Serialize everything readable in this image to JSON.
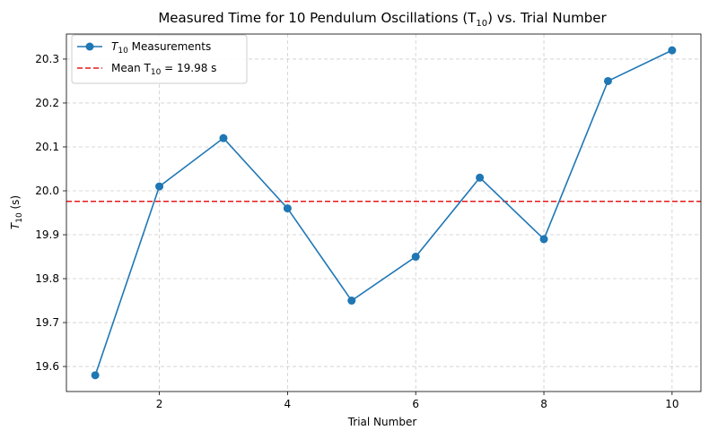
{
  "chart_data": {
    "type": "line",
    "title": "Measured Time for 10 Pendulum Oscillations (T",
    "title_sub": "10",
    "title_tail": ") vs. Trial Number",
    "xlabel": "Trial Number",
    "ylabel": "T",
    "ylabel_sub": "10",
    "ylabel_tail": " (s)",
    "xlim": [
      0.55,
      10.45
    ],
    "ylim": [
      19.543,
      20.357
    ],
    "xticks": [
      2,
      4,
      6,
      8,
      10
    ],
    "xtick_labels": [
      "2",
      "4",
      "6",
      "8",
      "10"
    ],
    "yticks": [
      19.6,
      19.7,
      19.8,
      19.9,
      20.0,
      20.1,
      20.2,
      20.3
    ],
    "ytick_labels": [
      "19.6",
      "19.7",
      "19.8",
      "19.9",
      "20.0",
      "20.1",
      "20.2",
      "20.3"
    ],
    "grid": true,
    "legend_position": "upper-left",
    "series": [
      {
        "name": "T",
        "name_sub": "10",
        "name_tail": " Measurements",
        "color": "#1f77b4",
        "marker": "circle",
        "x": [
          1,
          2,
          3,
          4,
          5,
          6,
          7,
          8,
          9,
          10
        ],
        "y": [
          19.58,
          20.01,
          20.12,
          19.96,
          19.75,
          19.85,
          20.03,
          19.89,
          20.25,
          20.32
        ]
      }
    ],
    "reference_lines": [
      {
        "name": "Mean T",
        "name_sub": "10",
        "name_tail": " = 19.98 s",
        "orientation": "horizontal",
        "value": 19.976,
        "color": "#e41a1c",
        "style": "dashed"
      }
    ]
  }
}
